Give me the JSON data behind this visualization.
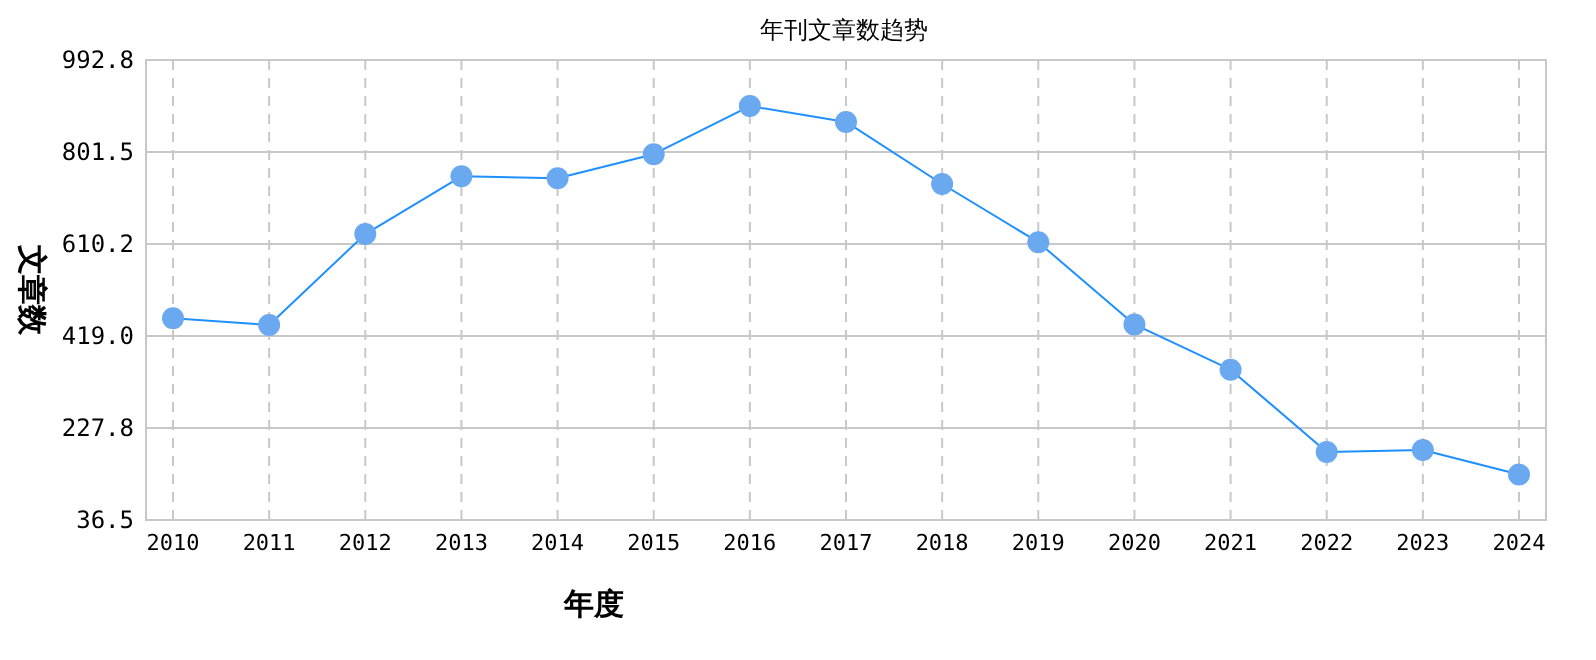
{
  "chart_data": {
    "type": "line",
    "title": "年刊文章数趋势",
    "xlabel": "年度",
    "ylabel": "文章数",
    "categories": [
      "2010",
      "2011",
      "2012",
      "2013",
      "2014",
      "2015",
      "2016",
      "2017",
      "2018",
      "2019",
      "2020",
      "2021",
      "2022",
      "2023",
      "2024"
    ],
    "series": [
      {
        "color": "#1e90ff",
        "values": [
          456,
          442,
          631,
          751,
          747,
          797,
          897,
          864,
          735,
          614,
          443,
          349,
          178,
          182,
          131
        ]
      }
    ],
    "ylim": [
      36.5,
      992.8
    ],
    "yticks": [
      {
        "value": 36.5,
        "label": "36.5"
      },
      {
        "value": 227.8,
        "label": "227.8"
      },
      {
        "value": 419.0,
        "label": "419.0"
      },
      {
        "value": 610.2,
        "label": "610.2"
      },
      {
        "value": 801.5,
        "label": "801.5"
      },
      {
        "value": 992.8,
        "label": "992.8"
      }
    ],
    "grid": true,
    "marker": "circle",
    "line_style": "solid"
  }
}
